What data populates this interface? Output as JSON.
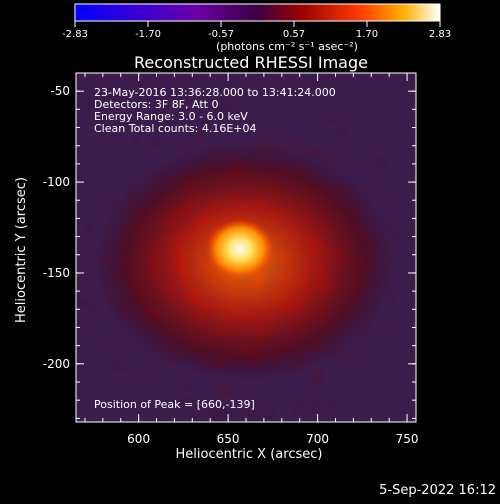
{
  "colorbar": {
    "tick_labels": [
      "-2.83",
      "-1.70",
      "-0.57",
      "0.57",
      "1.70",
      "2.83"
    ],
    "units_text": "(photons cm⁻² s⁻¹ asec⁻²)"
  },
  "title": "Reconstructed RHESSI Image",
  "info_lines": [
    "23-May-2016 13:36:28.000 to 13:41:24.000",
    "Detectors: 3F 8F, Att 0",
    "Energy Range: 3.0 - 6.0 keV",
    "Clean     Total counts: 4.16E+04"
  ],
  "peak_text": "Position of Peak = [660,-139]",
  "x_axis": {
    "label": "Heliocentric X (arcsec)",
    "tick_labels": [
      "600",
      "650",
      "700",
      "750"
    ],
    "range": [
      565,
      755
    ]
  },
  "y_axis": {
    "label": "Heliocentric Y (arcsec)",
    "tick_labels": [
      "-50",
      "-100",
      "-150",
      "-200"
    ],
    "range": [
      -232,
      -40
    ]
  },
  "peak": {
    "x": 660,
    "y": -139
  },
  "footer_date": "5-Sep-2022 16:12",
  "colors": {
    "cold": "#0000ff",
    "mid": "#800080",
    "warm": "#ff3000",
    "hot": "#ffffff"
  }
}
